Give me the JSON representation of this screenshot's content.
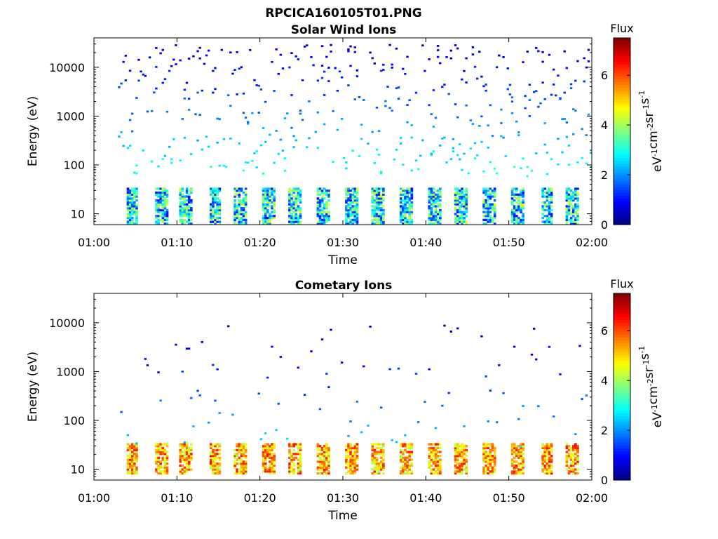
{
  "figure": {
    "title": "RPCICA160105T01.PNG"
  },
  "chart_data": [
    {
      "type": "heatmap",
      "title": "Solar Wind Ions",
      "xlabel": "Time",
      "ylabel": "Energy (eV)",
      "x_ticks": [
        "01:00",
        "01:10",
        "01:20",
        "01:30",
        "01:40",
        "01:50",
        "02:00"
      ],
      "x_range_min": [
        0,
        60
      ],
      "y_ticks": [
        "10",
        "100",
        "1000",
        "10000"
      ],
      "y_scale": "log",
      "ylim": [
        6,
        40000
      ],
      "colorbar": {
        "title": "Flux",
        "label": "eV-1cm-2sr-1s-1",
        "ticks": [
          "0",
          "2",
          "4",
          "6"
        ],
        "range": [
          0,
          7.5
        ],
        "colormap": "jet"
      },
      "features": {
        "periodic_bursts_minutes": [
          4.5,
          8,
          11,
          14.5,
          17.5,
          21,
          24,
          27.5,
          31,
          34,
          37.5,
          41,
          44,
          47.5,
          51,
          54.5,
          57.5
        ],
        "burst_energy_range_eV": [
          6,
          35
        ],
        "burst_flux_range": [
          1,
          4.5
        ],
        "scattered_energy_range_eV": [
          60,
          30000
        ],
        "scattered_flux_range": [
          0.5,
          3
        ]
      }
    },
    {
      "type": "heatmap",
      "title": "Cometary Ions",
      "xlabel": "Time",
      "ylabel": "Energy (eV)",
      "x_ticks": [
        "01:00",
        "01:10",
        "01:20",
        "01:30",
        "01:40",
        "01:50",
        "02:00"
      ],
      "x_range_min": [
        0,
        60
      ],
      "y_ticks": [
        "10",
        "100",
        "1000",
        "10000"
      ],
      "y_scale": "log",
      "ylim": [
        6,
        40000
      ],
      "colorbar": {
        "title": "Flux",
        "label": "eV-1cm-2sr-1s-1",
        "ticks": [
          "0",
          "2",
          "4",
          "6"
        ],
        "range": [
          0,
          7.5
        ],
        "colormap": "jet"
      },
      "features": {
        "periodic_bursts_minutes": [
          4.5,
          8,
          11,
          14.5,
          17.5,
          21,
          24,
          27.5,
          31,
          34,
          37.5,
          41,
          44,
          47.5,
          51,
          54.5,
          57.5
        ],
        "burst_energy_range_eV": [
          8,
          35
        ],
        "burst_flux_range": [
          4,
          6.5
        ],
        "scattered_energy_range_eV": [
          30,
          10000
        ],
        "scattered_flux_range": [
          0.3,
          2.5
        ]
      }
    }
  ]
}
